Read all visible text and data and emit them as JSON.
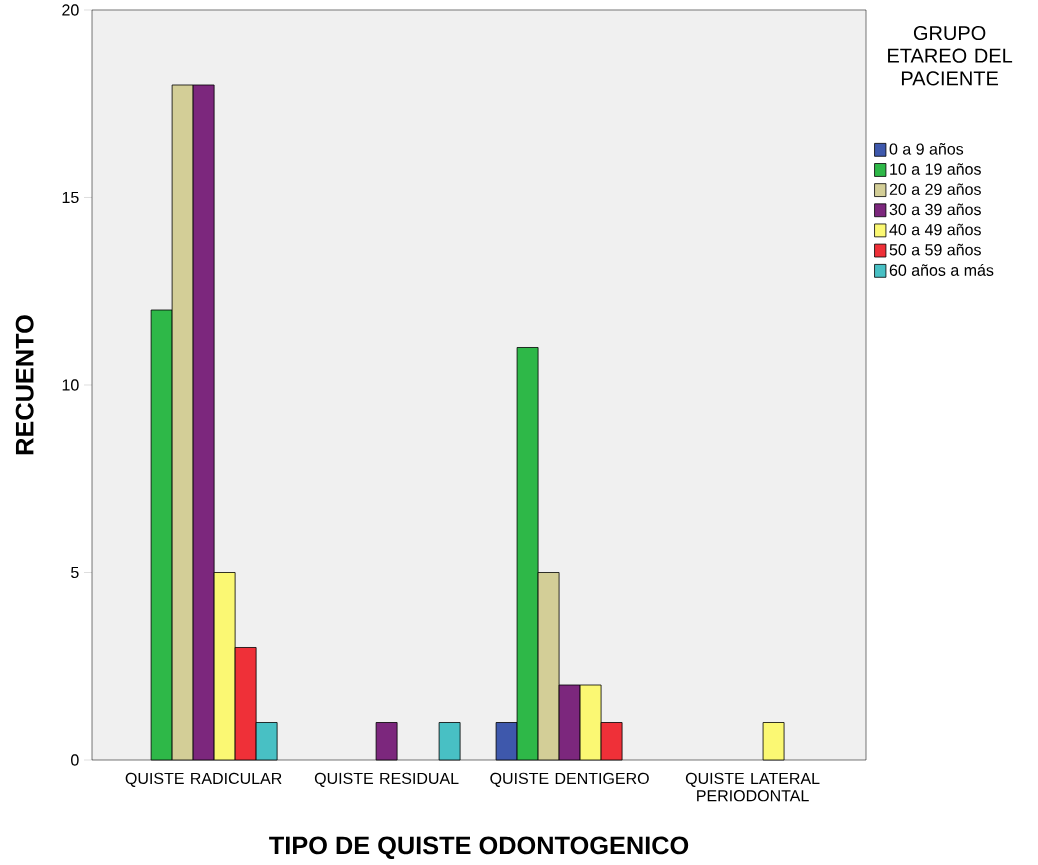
{
  "chart_data": {
    "type": "bar",
    "xlabel": "TIPO DE QUISTE ODONTOGENICO",
    "ylabel": "RECUENTO",
    "legend_title": "GRUPO ETAREO DEL PACIENTE",
    "categories": [
      "QUISTE RADICULAR",
      "QUISTE RESIDUAL",
      "QUISTE DENTIGERO",
      "QUISTE LATERAL PERIODONTAL"
    ],
    "series": [
      {
        "name": "0 a 9 años",
        "color": "#3e58ac",
        "values": [
          null,
          null,
          1,
          null
        ]
      },
      {
        "name": "10 a 19 años",
        "color": "#2eb848",
        "values": [
          12,
          null,
          11,
          null
        ]
      },
      {
        "name": "20 a 29 años",
        "color": "#d3ce97",
        "values": [
          18,
          null,
          5,
          null
        ]
      },
      {
        "name": "30 a 39 años",
        "color": "#7c277d",
        "values": [
          18,
          1,
          2,
          null
        ]
      },
      {
        "name": "40 a 49 años",
        "color": "#fbf873",
        "values": [
          5,
          null,
          2,
          1
        ]
      },
      {
        "name": "50 a 59 años",
        "color": "#ef3038",
        "values": [
          3,
          null,
          1,
          null
        ]
      },
      {
        "name": "60 años a más",
        "color": "#48c0c4",
        "values": [
          1,
          1,
          null,
          null
        ]
      }
    ],
    "ylim": [
      0,
      20
    ],
    "yticks": [
      0,
      5,
      10,
      15,
      20
    ],
    "legend": "right"
  }
}
